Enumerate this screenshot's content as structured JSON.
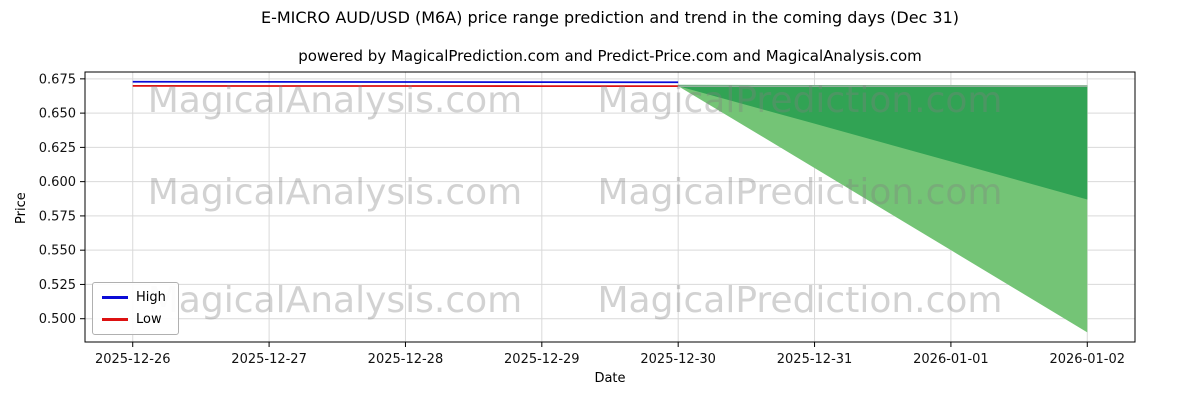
{
  "chart_data": {
    "type": "line",
    "title": "E-MICRO AUD/USD (M6A) price range prediction and trend in the coming days (Dec 31)",
    "subtitle": "powered by MagicalPrediction.com and Predict-Price.com and MagicalAnalysis.com",
    "xlabel": "Date",
    "ylabel": "Price",
    "x": [
      "2025-12-26",
      "2025-12-27",
      "2025-12-28",
      "2025-12-29",
      "2025-12-30",
      "2025-12-31",
      "2026-01-01",
      "2026-01-02"
    ],
    "y_tick_labels": [
      "0.500",
      "0.525",
      "0.550",
      "0.575",
      "0.600",
      "0.625",
      "0.650",
      "0.675"
    ],
    "y_tick_values": [
      0.5,
      0.525,
      0.55,
      0.575,
      0.6,
      0.625,
      0.65,
      0.675
    ],
    "ylim": [
      0.483,
      0.68
    ],
    "grid": true,
    "legend_position": "lower-left",
    "series": [
      {
        "name": "High",
        "color": "#0b0bd6",
        "x_idx": [
          0,
          1,
          2,
          3,
          4
        ],
        "values": [
          0.6729,
          0.6728,
          0.6727,
          0.6726,
          0.6725
        ]
      },
      {
        "name": "Low",
        "color": "#dd1111",
        "x_idx": [
          0,
          1,
          2,
          3,
          4
        ],
        "values": [
          0.6699,
          0.6698,
          0.6698,
          0.6697,
          0.6697
        ]
      }
    ],
    "bands": [
      {
        "name": "prediction-range-outer",
        "color": "#74c476",
        "x_idx": [
          4,
          5,
          6,
          7
        ],
        "upper": [
          0.6706,
          0.6705,
          0.6704,
          0.6703
        ],
        "lower": [
          0.6697,
          0.61,
          0.55,
          0.49
        ]
      },
      {
        "name": "prediction-range-inner",
        "color": "#31a354",
        "x_idx": [
          4,
          5,
          6,
          7
        ],
        "upper": [
          0.6706,
          0.6705,
          0.6704,
          0.6703
        ],
        "lower": [
          0.6697,
          0.6423,
          0.6147,
          0.587
        ]
      }
    ],
    "reference_line": {
      "value": 0.6697,
      "color": "#b3b3b3"
    },
    "legend": {
      "items": [
        {
          "label": "High",
          "color": "#0b0bd6"
        },
        {
          "label": "Low",
          "color": "#dd1111"
        }
      ]
    },
    "watermark_texts": [
      "MagicalAnalysis.com",
      "MagicalPrediction.com"
    ],
    "watermark_color": "#808080"
  }
}
